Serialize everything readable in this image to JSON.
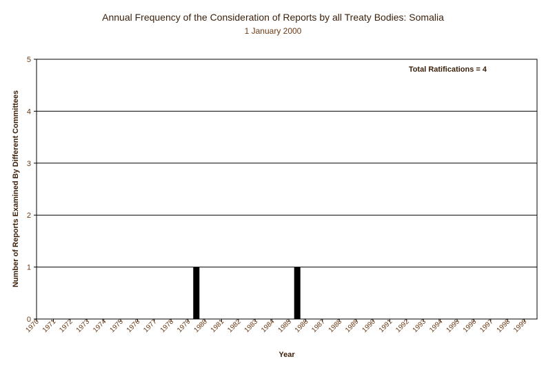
{
  "chart_data": {
    "type": "bar",
    "title": "Annual Frequency of the Consideration of Reports by all Treaty Bodies: Somalia",
    "subtitle": "1 January 2000",
    "xlabel": "Year",
    "ylabel": "Number of Reports Examined By Different Committees",
    "annotation": "Total Ratifications = 4",
    "ylim": [
      0,
      5
    ],
    "yticks": [
      0,
      1,
      2,
      3,
      4,
      5
    ],
    "grid": true,
    "categories": [
      "1970",
      "1971",
      "1972",
      "1973",
      "1974",
      "1975",
      "1976",
      "1977",
      "1978",
      "1979",
      "1980",
      "1981",
      "1982",
      "1983",
      "1984",
      "1985",
      "1986",
      "1987",
      "1988",
      "1989",
      "1990",
      "1991",
      "1992",
      "1993",
      "1994",
      "1995",
      "1996",
      "1997",
      "1998",
      "1999"
    ],
    "values": [
      0,
      0,
      0,
      0,
      0,
      0,
      0,
      0,
      0,
      1,
      0,
      0,
      0,
      0,
      0,
      1,
      0,
      0,
      0,
      0,
      0,
      0,
      0,
      0,
      0,
      0,
      0,
      0,
      0,
      0
    ],
    "colors": {
      "bar": "#000000",
      "axis_text": "#6b3a14",
      "title": "#3a1f0a"
    }
  }
}
